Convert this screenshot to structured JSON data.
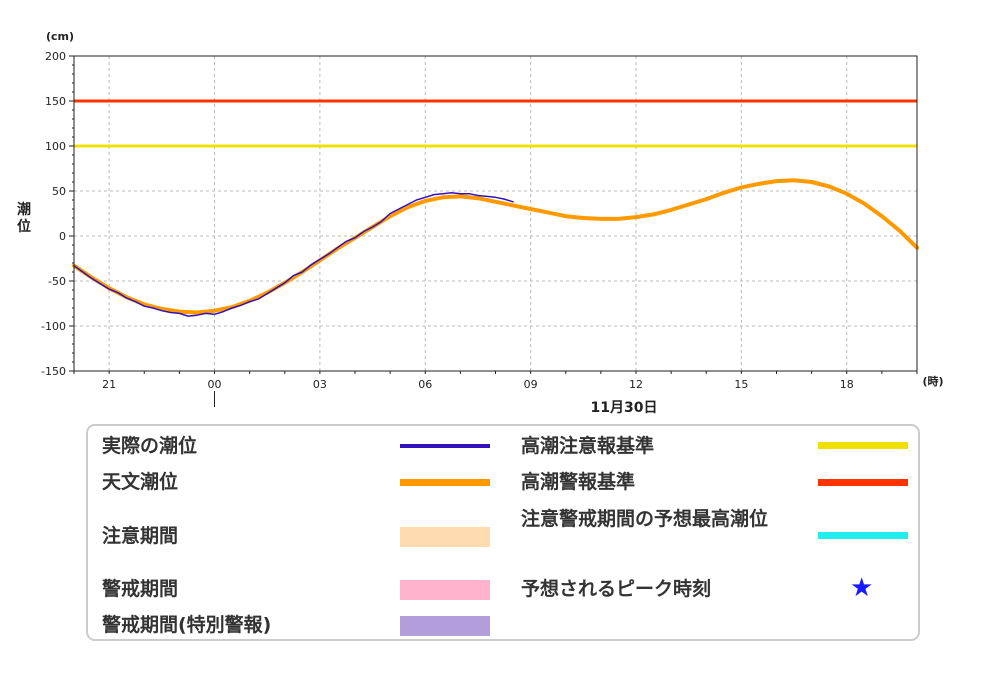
{
  "chart_data": {
    "type": "line",
    "unit_label": "(cm)",
    "ylabel": "潮位",
    "xlabel_unit": "(時)",
    "date_label": "11月30日",
    "ylim": [
      -150,
      200
    ],
    "yticks": [
      "200",
      "150",
      "100",
      "50",
      "0",
      "-50",
      "-100",
      "-150"
    ],
    "ytick_values": [
      200,
      150,
      100,
      50,
      0,
      -50,
      -100,
      -150
    ],
    "xlim": [
      -4,
      20
    ],
    "xticks": [
      "21",
      "00",
      "03",
      "06",
      "09",
      "12",
      "15",
      "18"
    ],
    "xtick_values": [
      -3,
      0,
      3,
      6,
      9,
      12,
      15,
      18
    ],
    "grid": true,
    "thresholds": [
      {
        "name": "高潮警報基準",
        "value": 150,
        "color": "#ff3300"
      },
      {
        "name": "高潮注意報基準",
        "value": 100,
        "color": "#f0e000"
      }
    ],
    "series": [
      {
        "name": "天文潮位",
        "color": "#ff9900",
        "x": [
          -4,
          -3.5,
          -3,
          -2.5,
          -2,
          -1.5,
          -1,
          -0.5,
          0,
          0.5,
          1,
          1.5,
          2,
          2.5,
          3,
          3.5,
          4,
          4.5,
          5,
          5.5,
          6,
          6.5,
          7,
          7.5,
          8,
          8.5,
          9,
          9.5,
          10,
          10.5,
          11,
          11.5,
          12,
          12.5,
          13,
          13.5,
          14,
          14.5,
          15,
          15.5,
          16,
          16.5,
          17,
          17.5,
          18,
          18.5,
          19,
          19.5,
          20
        ],
        "values": [
          -33,
          -46,
          -58,
          -68,
          -76,
          -81,
          -84,
          -85,
          -83,
          -79,
          -72,
          -63,
          -52,
          -40,
          -27,
          -14,
          -2,
          10,
          22,
          32,
          39,
          43,
          44,
          42,
          38,
          34,
          30,
          26,
          22,
          20,
          19,
          19,
          21,
          24,
          29,
          35,
          41,
          48,
          54,
          58,
          61,
          62,
          60,
          55,
          47,
          36,
          22,
          6,
          -13
        ]
      },
      {
        "name": "実際の潮位",
        "color": "#3311bb",
        "x": [
          -4,
          -3.75,
          -3.5,
          -3.25,
          -3,
          -2.75,
          -2.5,
          -2.25,
          -2,
          -1.75,
          -1.5,
          -1.25,
          -1,
          -0.75,
          -0.5,
          -0.25,
          0,
          0.25,
          0.5,
          0.75,
          1,
          1.25,
          1.5,
          1.75,
          2,
          2.25,
          2.5,
          2.75,
          3,
          3.25,
          3.5,
          3.75,
          4,
          4.25,
          4.5,
          4.75,
          5,
          5.25,
          5.5,
          5.75,
          6,
          6.25,
          6.5,
          6.75,
          7,
          7.25,
          7.5,
          7.75,
          8,
          8.25,
          8.5
        ],
        "values": [
          -33,
          -40,
          -47,
          -53,
          -59,
          -63,
          -69,
          -73,
          -78,
          -80,
          -83,
          -85,
          -86,
          -89,
          -88,
          -86,
          -87,
          -84,
          -80,
          -77,
          -73,
          -70,
          -64,
          -58,
          -52,
          -44,
          -40,
          -32,
          -26,
          -20,
          -13,
          -6,
          -2,
          5,
          10,
          16,
          25,
          30,
          35,
          40,
          43,
          46,
          47,
          48,
          47,
          47,
          45,
          44,
          43,
          41,
          38
        ]
      }
    ]
  },
  "legend": {
    "items": [
      {
        "label": "実際の潮位",
        "kind": "line",
        "color": "#3311bb"
      },
      {
        "label": "天文潮位",
        "kind": "thick-line",
        "color": "#ff9900"
      },
      {
        "label": "注意期間",
        "kind": "block",
        "color": "#ffdcb0"
      },
      {
        "label": "警戒期間",
        "kind": "block",
        "color": "#ffb3cc"
      },
      {
        "label": "警戒期間(特別警報)",
        "kind": "block",
        "color": "#b39ddb"
      },
      {
        "label": "高潮注意報基準",
        "kind": "thick-line",
        "color": "#f0e000"
      },
      {
        "label": "高潮警報基準",
        "kind": "thick-line",
        "color": "#ff3300"
      },
      {
        "label": "注意警戒期間の予想最高潮位",
        "kind": "thick-line",
        "color": "#22eeee"
      },
      {
        "label": "予想されるピーク時刻",
        "kind": "star",
        "color": "#1a1aff",
        "symbol": "★"
      }
    ]
  }
}
